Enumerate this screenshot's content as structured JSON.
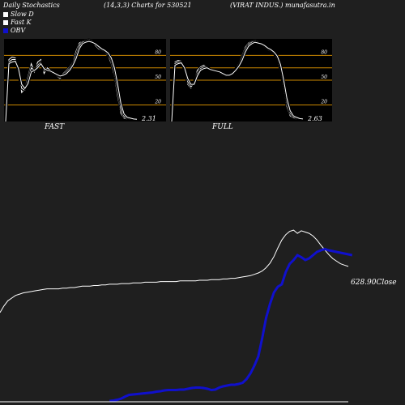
{
  "header": {
    "title": "Daily Stochastics",
    "params": "(14,3,3) Charts for 530521",
    "company": "(VIRAT INDUS.) munafasutra.in"
  },
  "legend": [
    {
      "label": "Slow  D",
      "color": "#ffffff"
    },
    {
      "label": "Fast K",
      "color": "#ffffff"
    },
    {
      "label": "OBV",
      "color": "#0000cc"
    }
  ],
  "colors": {
    "background": "#1f1f1f",
    "panel": "#000000",
    "level_line": "#cc8800",
    "stoch": "#ffffff",
    "obv": "#1010cc",
    "price": "#ffffff"
  },
  "chart_data": [
    {
      "type": "line",
      "title": "FAST",
      "ylim": [
        0,
        100
      ],
      "ytick_labels": [
        "80",
        "50",
        "20"
      ],
      "levels": [
        80,
        65,
        50,
        20
      ],
      "last_value_label": "2.31",
      "series": [
        {
          "values": [
            0,
            75,
            78,
            77,
            60,
            35,
            40,
            55,
            70,
            60,
            72,
            75,
            58,
            65,
            62,
            60,
            55,
            52,
            58,
            62,
            66,
            72,
            85,
            95,
            97,
            98,
            99,
            98,
            92,
            88,
            86,
            84,
            80,
            70,
            55,
            30,
            10,
            4,
            3,
            3,
            2.5,
            2.31
          ]
        },
        {
          "values": [
            0,
            72,
            75,
            75,
            62,
            40,
            38,
            50,
            65,
            62,
            68,
            72,
            62,
            62,
            60,
            58,
            56,
            54,
            56,
            60,
            64,
            70,
            80,
            92,
            96,
            97,
            98,
            97,
            94,
            90,
            87,
            85,
            82,
            74,
            60,
            38,
            15,
            6,
            4,
            3,
            2.7,
            2.4
          ]
        },
        {
          "values": [
            0,
            70,
            72,
            73,
            64,
            45,
            40,
            46,
            60,
            62,
            65,
            70,
            64,
            62,
            61,
            59,
            57,
            55,
            56,
            58,
            62,
            68,
            76,
            88,
            94,
            96,
            97,
            96,
            94,
            91,
            88,
            86,
            83,
            77,
            65,
            45,
            22,
            9,
            5,
            4,
            3,
            2.6
          ]
        }
      ]
    },
    {
      "type": "line",
      "title": "FULL",
      "ylim": [
        0,
        100
      ],
      "ytick_labels": [
        "80",
        "50",
        "20"
      ],
      "levels": [
        80,
        65,
        50,
        20
      ],
      "last_value_label": "2.63",
      "series": [
        {
          "values": [
            0,
            72,
            74,
            73,
            62,
            45,
            40,
            48,
            62,
            66,
            68,
            66,
            62,
            62,
            61,
            59,
            57,
            55,
            57,
            60,
            64,
            70,
            80,
            90,
            95,
            97,
            98,
            97,
            94,
            90,
            87,
            85,
            82,
            76,
            62,
            40,
            18,
            7,
            4,
            3,
            2.8,
            2.63
          ]
        },
        {
          "values": [
            0,
            70,
            72,
            72,
            64,
            48,
            42,
            46,
            58,
            64,
            66,
            66,
            63,
            62,
            61,
            59,
            57,
            56,
            56,
            59,
            63,
            68,
            77,
            87,
            93,
            96,
            97,
            96,
            94,
            91,
            88,
            86,
            83,
            78,
            66,
            45,
            23,
            10,
            5,
            4,
            3,
            2.8
          ]
        },
        {
          "values": [
            0,
            68,
            70,
            71,
            65,
            52,
            45,
            45,
            55,
            62,
            64,
            65,
            63,
            62,
            61,
            60,
            58,
            56,
            56,
            58,
            62,
            67,
            74,
            84,
            91,
            94,
            96,
            95,
            94,
            92,
            89,
            87,
            84,
            79,
            69,
            50,
            28,
            13,
            7,
            5,
            3.5,
            3
          ]
        }
      ]
    },
    {
      "type": "line",
      "title": "",
      "last_value_label": "628.90Close",
      "series": [
        {
          "name": "OBV",
          "color": "#1010cc",
          "values": [
            null,
            null,
            null,
            null,
            null,
            null,
            null,
            null,
            null,
            null,
            null,
            null,
            null,
            null,
            null,
            null,
            null,
            null,
            null,
            null,
            null,
            null,
            null,
            null,
            null,
            null,
            null,
            null,
            0,
            1,
            3,
            6,
            11,
            15,
            16,
            17,
            18,
            19,
            20,
            21,
            23,
            24,
            26,
            27,
            27,
            27,
            28,
            28,
            30,
            32,
            33,
            33,
            32,
            30,
            27,
            28,
            33,
            36,
            38,
            40,
            40,
            42,
            45,
            54,
            68,
            87,
            110,
            155,
            205,
            240,
            268,
            282,
            288,
            318,
            338,
            348,
            360,
            355,
            348,
            352,
            360,
            368,
            372,
            375,
            372,
            370,
            368,
            366,
            364,
            362,
            360
          ]
        },
        {
          "name": "Close",
          "color": "#ffffff",
          "values": [
            300,
            310,
            318,
            322,
            326,
            328,
            330,
            331,
            332,
            333,
            334,
            335,
            336,
            336,
            336,
            336,
            337,
            337,
            338,
            338,
            339,
            340,
            340,
            340,
            341,
            341,
            342,
            342,
            343,
            343,
            343,
            344,
            344,
            344,
            345,
            345,
            345,
            346,
            346,
            346,
            346,
            347,
            347,
            347,
            347,
            347,
            348,
            348,
            348,
            348,
            348,
            349,
            349,
            349,
            350,
            350,
            350,
            351,
            351,
            352,
            352,
            353,
            354,
            355,
            356,
            358,
            360,
            363,
            368,
            375,
            385,
            398,
            410,
            418,
            423,
            425,
            420,
            424,
            422,
            420,
            416,
            410,
            402,
            395,
            388,
            382,
            378,
            374,
            372,
            370,
            628.9
          ]
        }
      ]
    }
  ]
}
